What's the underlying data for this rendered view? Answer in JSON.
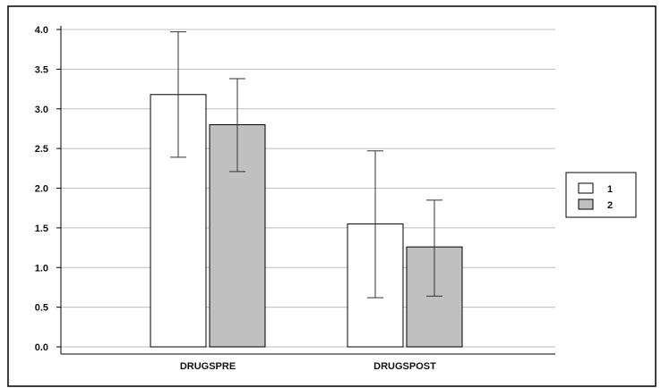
{
  "chart_data": {
    "type": "bar",
    "title": "",
    "xlabel": "",
    "ylabel": "",
    "categories": [
      "DRUGSPRE",
      "DRUGSPOST"
    ],
    "series": [
      {
        "name": "1",
        "values": [
          3.18,
          1.55
        ],
        "error_low": [
          2.39,
          0.62
        ],
        "error_high": [
          3.97,
          2.47
        ],
        "color": "#ffffff"
      },
      {
        "name": "2",
        "values": [
          2.8,
          1.26
        ],
        "error_low": [
          2.21,
          0.64
        ],
        "error_high": [
          3.38,
          1.85
        ],
        "color": "#c0c0c0"
      }
    ],
    "ylim": [
      0,
      4.0
    ],
    "yticks": [
      "0.0",
      "0.5",
      "1.0",
      "1.5",
      "2.0",
      "2.5",
      "3.0",
      "3.5",
      "4.0"
    ],
    "grid": true,
    "legend_position": "right"
  }
}
